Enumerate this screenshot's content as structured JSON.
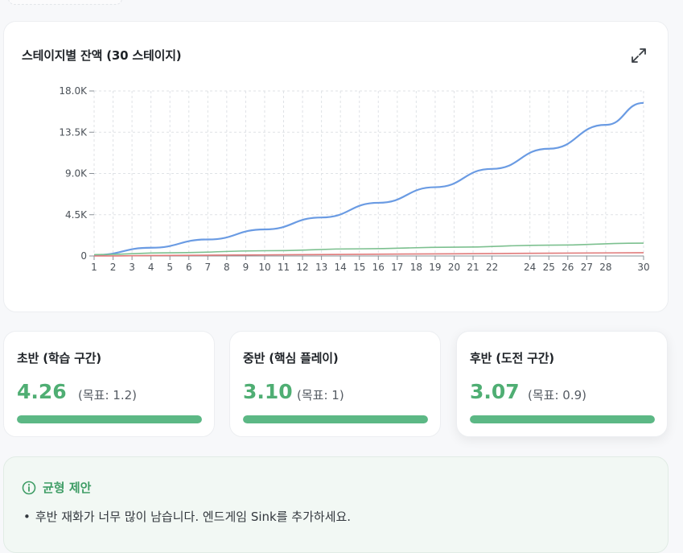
{
  "chart_card": {
    "title": "스테이지별 잔액 (30 스테이지)",
    "expand_icon": "expand-icon"
  },
  "chart_data": {
    "type": "line",
    "x_ticks": [
      "1",
      "2",
      "3",
      "4",
      "5",
      "6",
      "7",
      "8",
      "9",
      "10",
      "11",
      "12",
      "13",
      "14",
      "15",
      "16",
      "17",
      "18",
      "19",
      "20",
      "21",
      "22",
      "24",
      "25",
      "26",
      "27",
      "28",
      "30"
    ],
    "y_ticks": [
      "0",
      "4.5K",
      "9.0K",
      "13.5K",
      "18.0K"
    ],
    "xlim": [
      1,
      30
    ],
    "ylim": [
      0,
      18000
    ],
    "grid": true,
    "series": [
      {
        "color": "#6a9be3",
        "x": [
          1,
          4,
          7,
          10,
          13,
          16,
          19,
          22,
          25,
          28,
          30
        ],
        "y": [
          100,
          900,
          1800,
          2900,
          4200,
          5800,
          7500,
          9500,
          11700,
          14300,
          16700
        ]
      },
      {
        "color": "#7cc08f",
        "x": [
          1,
          5,
          10,
          15,
          20,
          25,
          30
        ],
        "y": [
          150,
          350,
          570,
          780,
          960,
          1180,
          1400
        ]
      },
      {
        "color": "#e07a7a",
        "x": [
          1,
          5,
          10,
          15,
          20,
          25,
          30
        ],
        "y": [
          0,
          60,
          120,
          180,
          240,
          300,
          360
        ]
      }
    ]
  },
  "stats": [
    {
      "title": "초반 (학습 구간)",
      "value": "4.26",
      "target": "(목표: 1.2)",
      "progress": 1.0
    },
    {
      "title": "중반 (핵심 플레이)",
      "value": "3.10",
      "target": "(목표: 1)",
      "progress": 1.0
    },
    {
      "title": "후반 (도전 구간)",
      "value": "3.07",
      "target": "(목표: 0.9)",
      "progress": 1.0
    }
  ],
  "balance": {
    "title": "균형 제안",
    "icon": "info-icon",
    "items": [
      "후반 재화가 너무 많이 남습니다. 엔드게임 Sink를 추가하세요."
    ]
  }
}
